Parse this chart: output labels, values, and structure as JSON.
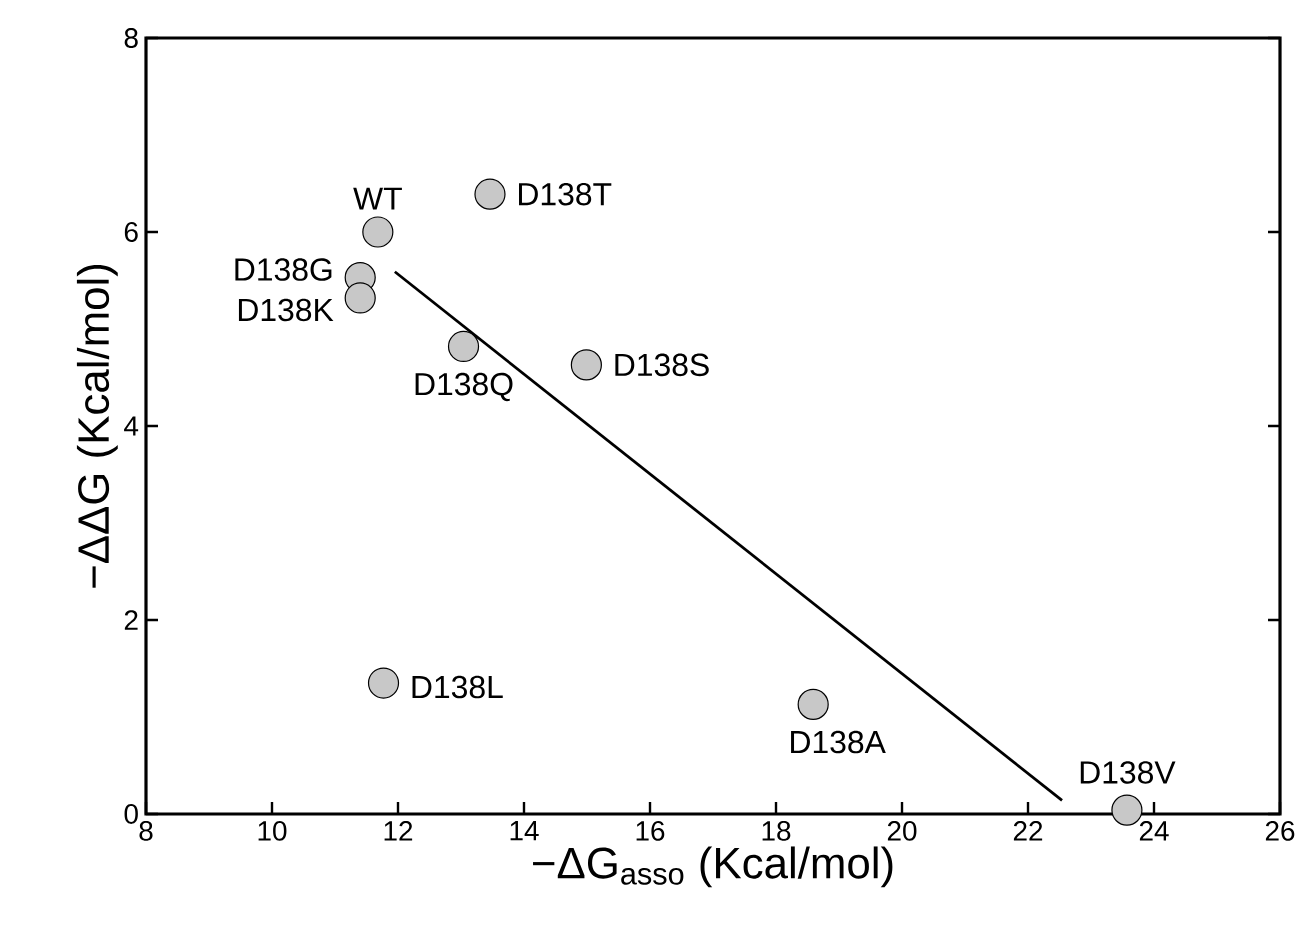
{
  "chart_data": {
    "type": "scatter",
    "xlabel": "−ΔG$_{asso}$ (Kcal/mol)",
    "ylabel": "−ΔΔG (Kcal/mol)",
    "xlim": [
      8,
      26
    ],
    "ylim": [
      0,
      8
    ],
    "xticks": [
      8,
      10,
      12,
      14,
      16,
      18,
      20,
      22,
      24,
      26
    ],
    "yticks": [
      0,
      2,
      4,
      6,
      8
    ],
    "grid": false,
    "series": [
      {
        "type": "line",
        "color": "#000000",
        "marker": "none",
        "line_style": "solid",
        "x": [
          11.95,
          22.54
        ],
        "values": [
          5.59,
          0.14
        ]
      },
      {
        "color": "#c8c8c8",
        "marker": "circle",
        "x": [
          11.68,
          13.46,
          11.4,
          11.4,
          13.04,
          14.99,
          11.77,
          18.59,
          23.57
        ],
        "values": [
          6.0,
          6.39,
          5.53,
          5.32,
          4.82,
          4.63,
          1.35,
          1.13,
          0.04
        ]
      }
    ],
    "annotations": [
      {
        "text": "WT",
        "x": 11.68,
        "y": 6.0
      },
      {
        "text": "D138T",
        "x": 13.46,
        "y": 6.39
      },
      {
        "text": "D138G",
        "x": 11.4,
        "y": 5.53
      },
      {
        "text": "D138K",
        "x": 11.4,
        "y": 5.32
      },
      {
        "text": "D138Q",
        "x": 13.04,
        "y": 4.82
      },
      {
        "text": "D138S",
        "x": 14.99,
        "y": 4.63
      },
      {
        "text": "D138L",
        "x": 11.77,
        "y": 1.35
      },
      {
        "text": "D138A",
        "x": 18.59,
        "y": 1.13
      },
      {
        "text": "D138V",
        "x": 23.57,
        "y": 0.04
      }
    ]
  }
}
